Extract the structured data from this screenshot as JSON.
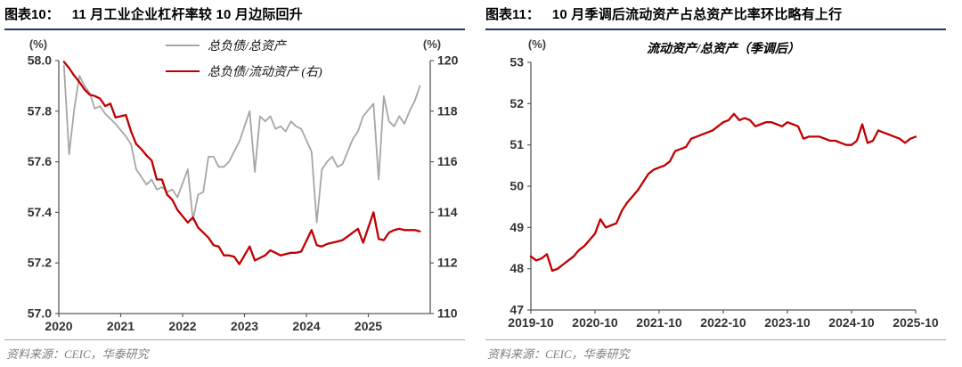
{
  "palette": {
    "accent_red": "#c00000",
    "gray_line": "#a6a6a6",
    "title_rule_navy": "#1f3864",
    "footer_rule": "#9aa7c4",
    "axis_line": "#595959",
    "tick_text": "#333333",
    "source_text": "#7f7f7f"
  },
  "chart_data": [
    {
      "type": "line",
      "fig_label": "图表10：",
      "title": "11 月工业企业杠杆率较 10 月边际回升",
      "unit_left": "(%)",
      "unit_right": "(%)",
      "source": "资料来源：CEIC，华泰研究",
      "legend_position": "top-center",
      "grid": false,
      "x_epoch": "2020-01",
      "x_ticks": [
        {
          "label": "2020",
          "ym": "2020-01"
        },
        {
          "label": "2021",
          "ym": "2021-01"
        },
        {
          "label": "2022",
          "ym": "2022-01"
        },
        {
          "label": "2023",
          "ym": "2023-01"
        },
        {
          "label": "2024",
          "ym": "2024-01"
        },
        {
          "label": "2025",
          "ym": "2025-01"
        }
      ],
      "axes": {
        "left": {
          "min": 57.0,
          "max": 58.0,
          "ticks": [
            "57.0",
            "57.2",
            "57.4",
            "57.6",
            "57.8",
            "58.0"
          ]
        },
        "right": {
          "min": 110,
          "max": 120,
          "ticks": [
            "110",
            "112",
            "114",
            "116",
            "118",
            "120"
          ]
        }
      },
      "series": [
        {
          "name": "总负债/总资产",
          "axis": "left",
          "color": "#a6a6a6",
          "width": 1.8,
          "points": [
            [
              "2020-02",
              57.98
            ],
            [
              "2020-03",
              57.63
            ],
            [
              "2020-04",
              57.81
            ],
            [
              "2020-05",
              57.94
            ],
            [
              "2020-06",
              57.9
            ],
            [
              "2020-07",
              57.87
            ],
            [
              "2020-08",
              57.81
            ],
            [
              "2020-09",
              57.82
            ],
            [
              "2020-10",
              57.79
            ],
            [
              "2020-11",
              57.77
            ],
            [
              "2020-12",
              57.75
            ],
            [
              "2021-02",
              57.7
            ],
            [
              "2021-03",
              57.67
            ],
            [
              "2021-04",
              57.57
            ],
            [
              "2021-05",
              57.54
            ],
            [
              "2021-06",
              57.51
            ],
            [
              "2021-07",
              57.53
            ],
            [
              "2021-08",
              57.49
            ],
            [
              "2021-09",
              57.5
            ],
            [
              "2021-10",
              57.48
            ],
            [
              "2021-11",
              57.49
            ],
            [
              "2021-12",
              57.46
            ],
            [
              "2022-02",
              57.57
            ],
            [
              "2022-03",
              57.37
            ],
            [
              "2022-04",
              57.47
            ],
            [
              "2022-05",
              57.48
            ],
            [
              "2022-06",
              57.62
            ],
            [
              "2022-07",
              57.62
            ],
            [
              "2022-08",
              57.58
            ],
            [
              "2022-09",
              57.58
            ],
            [
              "2022-10",
              57.6
            ],
            [
              "2022-11",
              57.64
            ],
            [
              "2022-12",
              57.68
            ],
            [
              "2023-02",
              57.8
            ],
            [
              "2023-03",
              57.56
            ],
            [
              "2023-04",
              57.78
            ],
            [
              "2023-05",
              57.76
            ],
            [
              "2023-06",
              57.78
            ],
            [
              "2023-07",
              57.73
            ],
            [
              "2023-08",
              57.74
            ],
            [
              "2023-09",
              57.72
            ],
            [
              "2023-10",
              57.76
            ],
            [
              "2023-11",
              57.74
            ],
            [
              "2023-12",
              57.73
            ],
            [
              "2024-02",
              57.64
            ],
            [
              "2024-03",
              57.36
            ],
            [
              "2024-04",
              57.57
            ],
            [
              "2024-05",
              57.6
            ],
            [
              "2024-06",
              57.62
            ],
            [
              "2024-07",
              57.58
            ],
            [
              "2024-08",
              57.59
            ],
            [
              "2024-09",
              57.64
            ],
            [
              "2024-10",
              57.69
            ],
            [
              "2024-11",
              57.72
            ],
            [
              "2024-12",
              57.78
            ],
            [
              "2025-02",
              57.83
            ],
            [
              "2025-03",
              57.53
            ],
            [
              "2025-04",
              57.86
            ],
            [
              "2025-05",
              57.76
            ],
            [
              "2025-06",
              57.74
            ],
            [
              "2025-07",
              57.78
            ],
            [
              "2025-08",
              57.75
            ],
            [
              "2025-09",
              57.8
            ],
            [
              "2025-10",
              57.84
            ],
            [
              "2025-11",
              57.9
            ]
          ]
        },
        {
          "name": "总负债/流动资产 (右)",
          "axis": "right",
          "color": "#c00000",
          "width": 2.3,
          "points": [
            [
              "2020-02",
              119.95
            ],
            [
              "2020-03",
              119.7
            ],
            [
              "2020-04",
              119.4
            ],
            [
              "2020-05",
              119.15
            ],
            [
              "2020-06",
              118.85
            ],
            [
              "2020-07",
              118.65
            ],
            [
              "2020-08",
              118.6
            ],
            [
              "2020-09",
              118.5
            ],
            [
              "2020-10",
              118.2
            ],
            [
              "2020-11",
              118.3
            ],
            [
              "2020-12",
              117.75
            ],
            [
              "2021-02",
              117.85
            ],
            [
              "2021-03",
              117.2
            ],
            [
              "2021-04",
              116.7
            ],
            [
              "2021-05",
              116.5
            ],
            [
              "2021-06",
              116.25
            ],
            [
              "2021-07",
              116.05
            ],
            [
              "2021-08",
              115.3
            ],
            [
              "2021-09",
              115.3
            ],
            [
              "2021-10",
              114.7
            ],
            [
              "2021-11",
              114.5
            ],
            [
              "2021-12",
              114.1
            ],
            [
              "2022-02",
              113.6
            ],
            [
              "2022-03",
              113.8
            ],
            [
              "2022-04",
              113.4
            ],
            [
              "2022-05",
              113.2
            ],
            [
              "2022-06",
              113.0
            ],
            [
              "2022-07",
              112.7
            ],
            [
              "2022-08",
              112.65
            ],
            [
              "2022-09",
              112.3
            ],
            [
              "2022-10",
              112.3
            ],
            [
              "2022-11",
              112.25
            ],
            [
              "2022-12",
              111.95
            ],
            [
              "2023-02",
              112.65
            ],
            [
              "2023-03",
              112.1
            ],
            [
              "2023-04",
              112.2
            ],
            [
              "2023-05",
              112.3
            ],
            [
              "2023-06",
              112.5
            ],
            [
              "2023-07",
              112.4
            ],
            [
              "2023-08",
              112.3
            ],
            [
              "2023-09",
              112.35
            ],
            [
              "2023-10",
              112.4
            ],
            [
              "2023-11",
              112.4
            ],
            [
              "2023-12",
              112.45
            ],
            [
              "2024-02",
              113.3
            ],
            [
              "2024-03",
              112.7
            ],
            [
              "2024-04",
              112.65
            ],
            [
              "2024-05",
              112.75
            ],
            [
              "2024-06",
              112.8
            ],
            [
              "2024-07",
              112.85
            ],
            [
              "2024-08",
              112.9
            ],
            [
              "2024-09",
              113.05
            ],
            [
              "2024-10",
              113.2
            ],
            [
              "2024-11",
              113.35
            ],
            [
              "2024-12",
              112.8
            ],
            [
              "2025-02",
              114.0
            ],
            [
              "2025-03",
              112.95
            ],
            [
              "2025-04",
              112.9
            ],
            [
              "2025-05",
              113.2
            ],
            [
              "2025-06",
              113.3
            ],
            [
              "2025-07",
              113.35
            ],
            [
              "2025-08",
              113.3
            ],
            [
              "2025-09",
              113.3
            ],
            [
              "2025-10",
              113.3
            ],
            [
              "2025-11",
              113.25
            ]
          ]
        }
      ]
    },
    {
      "type": "line",
      "fig_label": "图表11：",
      "title": "10 月季调后流动资产占总资产比率环比略有上行",
      "inner_title": "流动资产/总资产（季调后）",
      "unit_left": "(%)",
      "source": "资料来源：CEIC，华泰研究",
      "grid": false,
      "x_epoch": "2019-10",
      "x_ticks": [
        {
          "label": "2019-10",
          "ym": "2019-10"
        },
        {
          "label": "2020-10",
          "ym": "2020-10"
        },
        {
          "label": "2021-10",
          "ym": "2021-10"
        },
        {
          "label": "2022-10",
          "ym": "2022-10"
        },
        {
          "label": "2023-10",
          "ym": "2023-10"
        },
        {
          "label": "2024-10",
          "ym": "2024-10"
        },
        {
          "label": "2025-10",
          "ym": "2025-10"
        }
      ],
      "axes": {
        "left": {
          "min": 47,
          "max": 53,
          "ticks": [
            "47",
            "48",
            "49",
            "50",
            "51",
            "52",
            "53"
          ]
        }
      },
      "series": [
        {
          "name": "流动资产/总资产（季调后）",
          "axis": "left",
          "color": "#c00000",
          "width": 2.3,
          "points": [
            [
              "2019-10",
              48.3
            ],
            [
              "2019-11",
              48.2
            ],
            [
              "2019-12",
              48.25
            ],
            [
              "2020-01",
              48.35
            ],
            [
              "2020-02",
              47.95
            ],
            [
              "2020-03",
              48.0
            ],
            [
              "2020-04",
              48.1
            ],
            [
              "2020-05",
              48.2
            ],
            [
              "2020-06",
              48.3
            ],
            [
              "2020-07",
              48.45
            ],
            [
              "2020-08",
              48.55
            ],
            [
              "2020-09",
              48.7
            ],
            [
              "2020-10",
              48.85
            ],
            [
              "2020-11",
              49.2
            ],
            [
              "2020-12",
              49.0
            ],
            [
              "2021-01",
              49.05
            ],
            [
              "2021-02",
              49.1
            ],
            [
              "2021-03",
              49.4
            ],
            [
              "2021-04",
              49.6
            ],
            [
              "2021-05",
              49.75
            ],
            [
              "2021-06",
              49.9
            ],
            [
              "2021-07",
              50.1
            ],
            [
              "2021-08",
              50.3
            ],
            [
              "2021-09",
              50.4
            ],
            [
              "2021-10",
              50.45
            ],
            [
              "2021-11",
              50.5
            ],
            [
              "2021-12",
              50.6
            ],
            [
              "2022-01",
              50.85
            ],
            [
              "2022-02",
              50.9
            ],
            [
              "2022-03",
              50.95
            ],
            [
              "2022-04",
              51.15
            ],
            [
              "2022-05",
              51.2
            ],
            [
              "2022-06",
              51.25
            ],
            [
              "2022-07",
              51.3
            ],
            [
              "2022-08",
              51.35
            ],
            [
              "2022-09",
              51.45
            ],
            [
              "2022-10",
              51.55
            ],
            [
              "2022-11",
              51.6
            ],
            [
              "2022-12",
              51.75
            ],
            [
              "2023-01",
              51.6
            ],
            [
              "2023-02",
              51.65
            ],
            [
              "2023-03",
              51.6
            ],
            [
              "2023-04",
              51.45
            ],
            [
              "2023-05",
              51.5
            ],
            [
              "2023-06",
              51.55
            ],
            [
              "2023-07",
              51.55
            ],
            [
              "2023-08",
              51.5
            ],
            [
              "2023-09",
              51.45
            ],
            [
              "2023-10",
              51.55
            ],
            [
              "2023-11",
              51.5
            ],
            [
              "2023-12",
              51.45
            ],
            [
              "2024-01",
              51.15
            ],
            [
              "2024-02",
              51.2
            ],
            [
              "2024-03",
              51.2
            ],
            [
              "2024-04",
              51.2
            ],
            [
              "2024-05",
              51.15
            ],
            [
              "2024-06",
              51.1
            ],
            [
              "2024-07",
              51.1
            ],
            [
              "2024-08",
              51.05
            ],
            [
              "2024-09",
              51.0
            ],
            [
              "2024-10",
              51.0
            ],
            [
              "2024-11",
              51.1
            ],
            [
              "2024-12",
              51.5
            ],
            [
              "2025-01",
              51.05
            ],
            [
              "2025-02",
              51.1
            ],
            [
              "2025-03",
              51.35
            ],
            [
              "2025-04",
              51.3
            ],
            [
              "2025-05",
              51.25
            ],
            [
              "2025-06",
              51.2
            ],
            [
              "2025-07",
              51.15
            ],
            [
              "2025-08",
              51.05
            ],
            [
              "2025-09",
              51.15
            ],
            [
              "2025-10",
              51.2
            ]
          ]
        }
      ]
    }
  ]
}
